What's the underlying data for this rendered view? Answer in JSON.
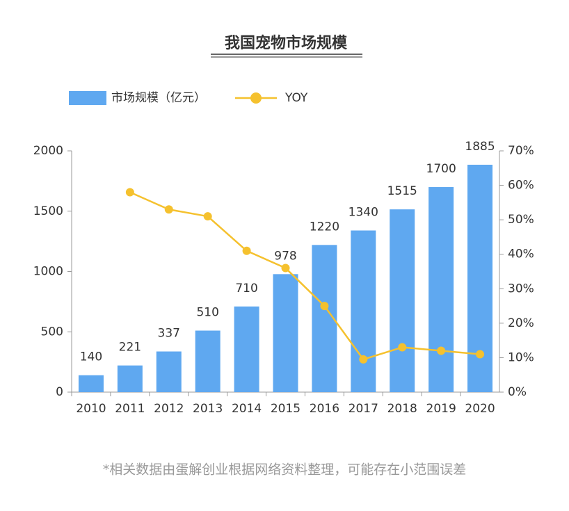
{
  "chart_data": {
    "type": "bar",
    "title": "我国宠物市场规模",
    "categories": [
      "2010",
      "2011",
      "2012",
      "2013",
      "2014",
      "2015",
      "2016",
      "2017",
      "2018",
      "2019",
      "2020"
    ],
    "series": [
      {
        "name": "市场规模（亿元）",
        "type": "bar",
        "color": "#5fa8f0",
        "values": [
          140,
          221,
          337,
          510,
          710,
          978,
          1220,
          1340,
          1515,
          1700,
          1885
        ]
      },
      {
        "name": "YOY",
        "type": "line",
        "axis": "y2",
        "color": "#f5c12e",
        "values": [
          null,
          58,
          53,
          51,
          41,
          36,
          25,
          9.5,
          13,
          12,
          11
        ]
      }
    ],
    "ylim": [
      0,
      2000
    ],
    "yticks": [
      0,
      500,
      1000,
      1500,
      2000
    ],
    "y2lim": [
      0,
      70
    ],
    "y2ticks": [
      {
        "value": 0,
        "label": "0%"
      },
      {
        "value": 10,
        "label": "10%"
      },
      {
        "value": 20,
        "label": "20%"
      },
      {
        "value": 30,
        "label": "30%"
      },
      {
        "value": 40,
        "label": "40%"
      },
      {
        "value": 50,
        "label": "50%"
      },
      {
        "value": 60,
        "label": "60%"
      },
      {
        "value": 70,
        "label": "70%"
      }
    ],
    "note": "*相关数据由蛋解创业根据网络资料整理，可能存在小范围误差"
  }
}
